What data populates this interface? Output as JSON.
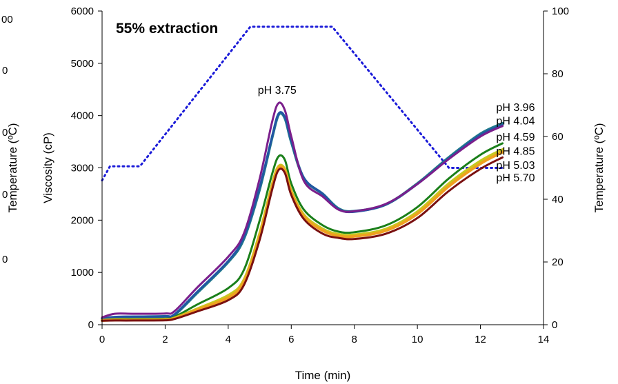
{
  "chart_data": {
    "type": "line",
    "title": "55% extraction",
    "xlabel": "Time (min)",
    "ylabel": "Viscosity (cP)",
    "y2label": "Temperature (ºC)",
    "ghost_ylabel": "Temperature (ºC)",
    "ghost_ticks": [
      "00",
      "0",
      "0",
      "0",
      "0"
    ],
    "xlim": [
      0,
      14
    ],
    "ylim": [
      0,
      6000
    ],
    "y2lim": [
      0,
      100
    ],
    "xticks": [
      "0",
      "2",
      "4",
      "6",
      "8",
      "10",
      "12",
      "14"
    ],
    "yticks": [
      "0",
      "1000",
      "2000",
      "3000",
      "4000",
      "5000",
      "6000"
    ],
    "y2ticks": [
      "0",
      "20",
      "40",
      "60",
      "80",
      "100"
    ],
    "grid": false,
    "series": [
      {
        "name": "pH 3.96",
        "color": "#1f7a8c",
        "width": 4,
        "x": [
          0,
          0.4,
          1,
          2,
          2.3,
          3,
          4,
          4.5,
          5,
          5.4,
          5.6,
          5.8,
          6,
          6.4,
          7,
          7.5,
          8,
          9,
          10,
          11,
          12,
          12.7
        ],
        "y": [
          110,
          140,
          150,
          160,
          190,
          600,
          1200,
          1650,
          2600,
          3600,
          4020,
          3950,
          3500,
          2800,
          2500,
          2220,
          2170,
          2300,
          2700,
          3200,
          3650,
          3850
        ]
      },
      {
        "name": "pH 4.04",
        "color": "#2255a4",
        "width": 3,
        "x": [
          0,
          0.4,
          1,
          2,
          2.3,
          3,
          4,
          4.5,
          5,
          5.4,
          5.6,
          5.8,
          6,
          6.4,
          7,
          7.5,
          8,
          9,
          10,
          11,
          12,
          12.7
        ],
        "y": [
          120,
          150,
          155,
          160,
          200,
          620,
          1220,
          1680,
          2640,
          3620,
          4040,
          3970,
          3520,
          2810,
          2500,
          2210,
          2160,
          2300,
          2690,
          3180,
          3630,
          3820
        ]
      },
      {
        "name": "pH 3.75",
        "color": "#7b1f8c",
        "width": 3,
        "x": [
          0,
          0.4,
          1,
          2,
          2.3,
          3,
          4,
          4.5,
          5,
          5.4,
          5.6,
          5.8,
          6,
          6.4,
          7,
          7.5,
          8,
          9,
          10,
          11,
          12,
          12.7
        ],
        "y": [
          140,
          210,
          210,
          215,
          260,
          700,
          1300,
          1750,
          2800,
          3900,
          4240,
          4100,
          3600,
          2750,
          2450,
          2200,
          2170,
          2310,
          2690,
          3170,
          3600,
          3800
        ]
      },
      {
        "name": "pH 4.59",
        "color": "#1a7f1a",
        "width": 3,
        "x": [
          0,
          0.4,
          1,
          2,
          2.3,
          3,
          4,
          4.5,
          5,
          5.4,
          5.6,
          5.8,
          6,
          6.4,
          7,
          7.5,
          8,
          9,
          10,
          11,
          12,
          12.7
        ],
        "y": [
          90,
          110,
          110,
          115,
          150,
          380,
          700,
          1050,
          2000,
          2900,
          3220,
          3150,
          2700,
          2200,
          1900,
          1780,
          1770,
          1900,
          2250,
          2800,
          3250,
          3470
        ]
      },
      {
        "name": "pH 4.85",
        "color": "#c8c820",
        "width": 4,
        "x": [
          0,
          0.4,
          1,
          2,
          2.3,
          3,
          4,
          4.5,
          5,
          5.4,
          5.6,
          5.8,
          6,
          6.4,
          7,
          7.5,
          8,
          9,
          10,
          11,
          12,
          12.7
        ],
        "y": [
          85,
          95,
          95,
          100,
          130,
          300,
          560,
          860,
          1750,
          2700,
          3030,
          2970,
          2560,
          2100,
          1830,
          1730,
          1720,
          1830,
          2160,
          2700,
          3130,
          3350
        ]
      },
      {
        "name": "pH 5.03",
        "color": "#f0a020",
        "width": 4,
        "x": [
          0,
          0.4,
          1,
          2,
          2.3,
          3,
          4,
          4.5,
          5,
          5.4,
          5.6,
          5.8,
          6,
          6.4,
          7,
          7.5,
          8,
          9,
          10,
          11,
          12,
          12.7
        ],
        "y": [
          80,
          90,
          90,
          95,
          120,
          280,
          520,
          820,
          1700,
          2650,
          3000,
          2940,
          2530,
          2070,
          1800,
          1700,
          1690,
          1800,
          2120,
          2650,
          3080,
          3300
        ]
      },
      {
        "name": "pH 5.70",
        "color": "#7a1010",
        "width": 3,
        "x": [
          0,
          0.4,
          1,
          2,
          2.3,
          3,
          4,
          4.5,
          5,
          5.4,
          5.6,
          5.8,
          6,
          6.4,
          7,
          7.5,
          8,
          9,
          10,
          11,
          12,
          12.7
        ],
        "y": [
          75,
          80,
          80,
          85,
          110,
          250,
          470,
          760,
          1630,
          2600,
          2960,
          2900,
          2480,
          2020,
          1740,
          1660,
          1640,
          1740,
          2040,
          2560,
          2980,
          3200
        ]
      }
    ],
    "temperature_series": {
      "name": "Temperature",
      "color": "#1a1ad8",
      "axis": "y2",
      "x": [
        0,
        0.25,
        1.2,
        4.7,
        5.6,
        7.3,
        11.0,
        12.7
      ],
      "y": [
        46,
        50.5,
        50.5,
        95,
        95,
        95,
        50,
        50
      ]
    },
    "annotations": [
      {
        "text": "pH 3.75",
        "x": 5.55,
        "y": 4420,
        "anchor": "middle"
      },
      {
        "text": "pH 3.96",
        "x": 12.5,
        "y": 4090,
        "anchor": "start"
      },
      {
        "text": "pH 4.04",
        "x": 12.5,
        "y": 3830,
        "anchor": "start"
      },
      {
        "text": "pH 4.59",
        "x": 12.5,
        "y": 3520,
        "anchor": "start"
      },
      {
        "text": "pH 4.85",
        "x": 12.5,
        "y": 3250,
        "anchor": "start"
      },
      {
        "text": "pH 5.03",
        "x": 12.5,
        "y": 2980,
        "anchor": "start"
      },
      {
        "text": "pH 5.70",
        "x": 12.5,
        "y": 2740,
        "anchor": "start"
      }
    ]
  }
}
